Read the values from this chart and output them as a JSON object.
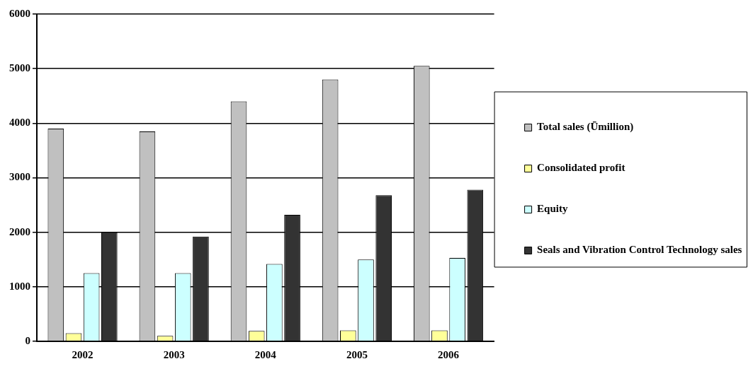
{
  "chart_data": {
    "type": "bar",
    "categories": [
      "2002",
      "2003",
      "2004",
      "2005",
      "2006"
    ],
    "series": [
      {
        "name": "Total sales (Ūmillion)",
        "color": "#c0c0c0",
        "values": [
          3900,
          3850,
          4400,
          4800,
          5050
        ]
      },
      {
        "name": "Consolidated profit",
        "color": "#ffff99",
        "values": [
          150,
          100,
          190,
          200,
          200
        ]
      },
      {
        "name": "Equity",
        "color": "#ccffff",
        "values": [
          1250,
          1250,
          1420,
          1500,
          1530
        ]
      },
      {
        "name": "Seals and Vibration Control Technology sales",
        "color": "#333333",
        "values": [
          2000,
          1920,
          2320,
          2680,
          2780
        ]
      }
    ],
    "ylim": [
      0,
      6000
    ],
    "yticks": [
      0,
      1000,
      2000,
      3000,
      4000,
      5000,
      6000
    ],
    "grid": "y",
    "legend": "right"
  }
}
